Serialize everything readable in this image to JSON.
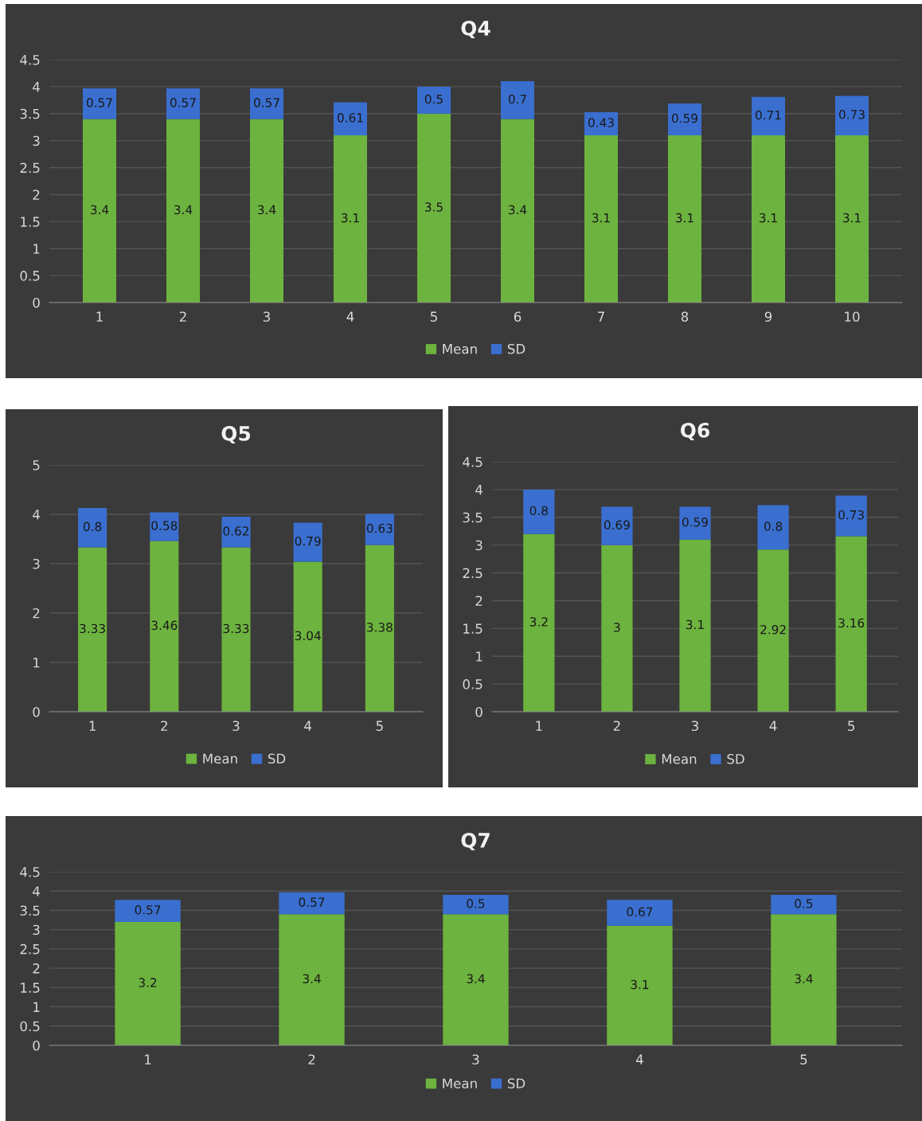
{
  "chart_data": [
    {
      "type": "bar",
      "title": "Q4",
      "stacked": true,
      "data_labels": true,
      "legend": "bottom",
      "grid": "y",
      "categories": [
        "1",
        "2",
        "3",
        "4",
        "5",
        "6",
        "7",
        "8",
        "9",
        "10"
      ],
      "ylim": [
        0,
        4.5
      ],
      "yticks": [
        0,
        0.5,
        1,
        1.5,
        2,
        2.5,
        3,
        3.5,
        4,
        4.5
      ],
      "series": [
        {
          "name": "Mean",
          "color": "#6db33f",
          "values": [
            3.4,
            3.4,
            3.4,
            3.1,
            3.5,
            3.4,
            3.1,
            3.1,
            3.1,
            3.1
          ]
        },
        {
          "name": "SD",
          "color": "#3a6fd0",
          "values": [
            0.57,
            0.57,
            0.57,
            0.61,
            0.5,
            0.7,
            0.43,
            0.59,
            0.71,
            0.73
          ]
        }
      ]
    },
    {
      "type": "bar",
      "title": "Q5",
      "stacked": true,
      "data_labels": true,
      "legend": "bottom",
      "grid": "y",
      "categories": [
        "1",
        "2",
        "3",
        "4",
        "5"
      ],
      "ylim": [
        0,
        5
      ],
      "yticks": [
        0,
        1,
        2,
        3,
        4,
        5
      ],
      "series": [
        {
          "name": "Mean",
          "color": "#6db33f",
          "values": [
            3.33,
            3.46,
            3.33,
            3.04,
            3.38
          ]
        },
        {
          "name": "SD",
          "color": "#3a6fd0",
          "values": [
            0.8,
            0.58,
            0.62,
            0.79,
            0.63
          ]
        }
      ]
    },
    {
      "type": "bar",
      "title": "Q6",
      "stacked": true,
      "data_labels": true,
      "legend": "bottom",
      "grid": "y",
      "categories": [
        "1",
        "2",
        "3",
        "4",
        "5"
      ],
      "ylim": [
        0,
        4.5
      ],
      "yticks": [
        0,
        0.5,
        1,
        1.5,
        2,
        2.5,
        3,
        3.5,
        4,
        4.5
      ],
      "series": [
        {
          "name": "Mean",
          "color": "#6db33f",
          "values": [
            3.2,
            3,
            3.1,
            2.92,
            3.16
          ]
        },
        {
          "name": "SD",
          "color": "#3a6fd0",
          "values": [
            0.8,
            0.69,
            0.59,
            0.8,
            0.73
          ]
        }
      ]
    },
    {
      "type": "bar",
      "title": "Q7",
      "stacked": true,
      "data_labels": true,
      "legend": "bottom",
      "grid": "y",
      "categories": [
        "1",
        "2",
        "3",
        "4",
        "5"
      ],
      "ylim": [
        0,
        4.5
      ],
      "yticks": [
        0,
        0.5,
        1,
        1.5,
        2,
        2.5,
        3,
        3.5,
        4,
        4.5
      ],
      "series": [
        {
          "name": "Mean",
          "color": "#6db33f",
          "values": [
            3.2,
            3.4,
            3.4,
            3.1,
            3.4
          ]
        },
        {
          "name": "SD",
          "color": "#3a6fd0",
          "values": [
            0.57,
            0.57,
            0.5,
            0.67,
            0.5
          ]
        }
      ]
    }
  ]
}
